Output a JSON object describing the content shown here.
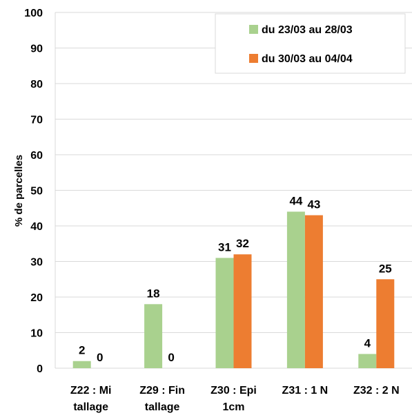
{
  "chart_data": {
    "type": "bar",
    "title": "",
    "xlabel": "",
    "ylabel": "% de parcelles",
    "ylim": [
      0,
      100
    ],
    "yticks": [
      0,
      10,
      20,
      30,
      40,
      50,
      60,
      70,
      80,
      90,
      100
    ],
    "grid": true,
    "legend_position": "top-right",
    "categories": [
      [
        "Z22 : Mi",
        "tallage"
      ],
      [
        "Z29 : Fin",
        "tallage"
      ],
      [
        "Z30 : Epi",
        "1cm"
      ],
      [
        "Z31 : 1 N"
      ],
      [
        "Z32 : 2 N"
      ]
    ],
    "series": [
      {
        "name": "du 23/03 au 28/03",
        "color": "#a9d18e",
        "values": [
          2,
          18,
          31,
          44,
          4
        ]
      },
      {
        "name": "du 30/03 au 04/04",
        "color": "#ed7d31",
        "values": [
          0,
          0,
          32,
          43,
          25
        ]
      }
    ]
  }
}
